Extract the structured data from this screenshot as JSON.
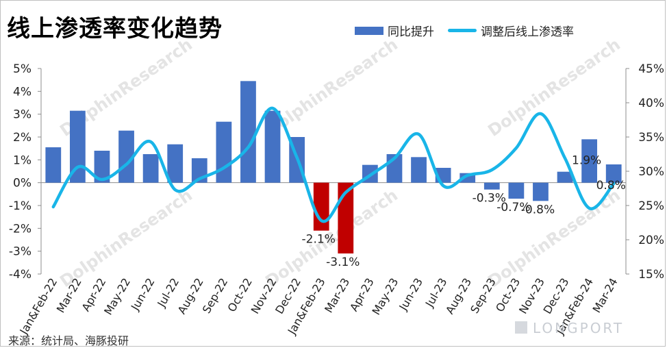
{
  "title": "线上渗透率变化趋势",
  "legend": {
    "bar_label": "同比提升",
    "line_label": "调整后线上渗透率"
  },
  "source": "来源：统计局、海豚投研",
  "watermark": "DolphinResearch",
  "watermark_cn": "海豚投研",
  "brand": "LONGPORT",
  "colors": {
    "bar_positive": "#4472c4",
    "bar_negative": "#c00000",
    "line": "#19b5e8"
  },
  "chart_data": {
    "type": "bar",
    "categories": [
      "Jan&Feb-22",
      "Mar-22",
      "Apr-22",
      "May-22",
      "Jun-22",
      "Jul-22",
      "Aug-22",
      "Sep-22",
      "Oct-22",
      "Nov-22",
      "Dec-22",
      "Jan&Feb-23",
      "Mar-23",
      "Apr-23",
      "May-23",
      "Jun-23",
      "Jul-23",
      "Aug-23",
      "Sep-23",
      "Oct-23",
      "Nov-23",
      "Dec-23",
      "Jan&Feb-24",
      "Mar-24"
    ],
    "series": [
      {
        "name": "同比提升",
        "type": "bar",
        "axis": "left",
        "values": [
          1.55,
          3.15,
          1.4,
          2.28,
          1.25,
          1.68,
          1.07,
          2.67,
          4.45,
          3.15,
          2.0,
          -2.1,
          -3.1,
          0.78,
          1.25,
          1.12,
          0.65,
          0.42,
          -0.3,
          -0.7,
          -0.8,
          0.48,
          1.9,
          0.8
        ]
      },
      {
        "name": "调整后线上渗透率",
        "type": "line",
        "axis": "right",
        "values": [
          24.8,
          30.6,
          28.8,
          31.0,
          34.3,
          27.3,
          28.9,
          30.5,
          33.5,
          39.2,
          32.0,
          22.8,
          26.9,
          29.4,
          31.9,
          35.4,
          27.9,
          29.4,
          30.2,
          33.4,
          38.4,
          31.9,
          24.6,
          28.2
        ]
      }
    ],
    "data_labels": [
      {
        "index": 11,
        "text": "-2.1%"
      },
      {
        "index": 12,
        "text": "-3.1%"
      },
      {
        "index": 18,
        "text": "-0.3%"
      },
      {
        "index": 19,
        "text": "-0.7%"
      },
      {
        "index": 20,
        "text": "-0.8%"
      },
      {
        "index": 22,
        "text": "1.9%"
      },
      {
        "index": 23,
        "text": "0.8%"
      }
    ],
    "ylim_left": [
      -4,
      5
    ],
    "yticks_left": [
      "-4%",
      "-3%",
      "-2%",
      "-1%",
      "0%",
      "1%",
      "2%",
      "3%",
      "4%",
      "5%"
    ],
    "ylim_right": [
      15,
      45
    ],
    "yticks_right": [
      "15%",
      "20%",
      "25%",
      "30%",
      "35%",
      "40%",
      "45%"
    ],
    "negative_highlight_indices": [
      11,
      12
    ],
    "grid": false,
    "legend_position": "top-right"
  }
}
